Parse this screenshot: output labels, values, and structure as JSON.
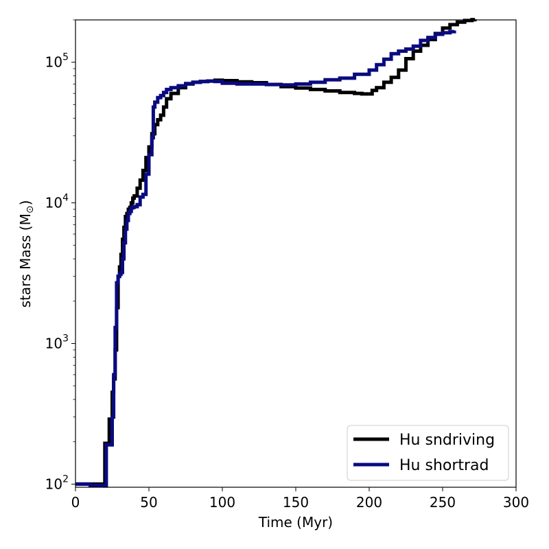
{
  "chart_data": {
    "type": "line",
    "xlabel": "Time (Myr)",
    "ylabel": "stars Mass (M",
    "ylabel_symbol": "⊙",
    "ylabel_close": ")",
    "xlim": [
      0,
      300
    ],
    "ylim": [
      95,
      200000
    ],
    "yscale": "log",
    "grid": false,
    "legend_position": "bottom-right",
    "x_ticks": [
      0,
      50,
      100,
      150,
      200,
      250,
      300
    ],
    "x_tick_labels": [
      "0",
      "50",
      "100",
      "150",
      "200",
      "250",
      "300"
    ],
    "y_ticks": [
      {
        "value": 100,
        "base": "10",
        "exp": "2"
      },
      {
        "value": 1000,
        "base": "10",
        "exp": "3"
      },
      {
        "value": 10000,
        "base": "10",
        "exp": "4"
      },
      {
        "value": 100000,
        "base": "10",
        "exp": "5"
      }
    ],
    "series": [
      {
        "name": "Hu sndriving",
        "color": "#000000",
        "x": [
          0,
          19.5,
          20,
          22,
          23,
          24,
          25,
          26,
          27,
          28,
          29,
          30,
          31,
          32,
          33,
          34,
          35,
          36,
          37,
          38,
          39,
          40,
          42,
          44,
          46,
          48,
          50,
          52,
          54,
          56,
          58,
          60,
          62,
          65,
          70,
          75,
          80,
          85,
          90,
          95,
          100,
          110,
          120,
          130,
          140,
          150,
          160,
          170,
          180,
          190,
          195,
          200,
          202,
          205,
          210,
          215,
          220,
          225,
          230,
          235,
          240,
          245,
          250,
          255,
          260,
          265,
          270,
          272
        ],
        "y": [
          100,
          98,
          195,
          195,
          290,
          290,
          450,
          560,
          900,
          1800,
          3000,
          3500,
          4300,
          5500,
          6700,
          8000,
          8400,
          9000,
          9300,
          10000,
          10800,
          11200,
          12700,
          14500,
          17000,
          21000,
          25000,
          31000,
          36000,
          39000,
          42000,
          48000,
          55000,
          60000,
          66000,
          70000,
          72000,
          73000,
          73500,
          74500,
          74000,
          72500,
          71500,
          69500,
          67000,
          65500,
          64000,
          62500,
          61000,
          60000,
          59500,
          59500,
          63000,
          66000,
          72000,
          78000,
          88000,
          106000,
          120000,
          132000,
          145000,
          160000,
          175000,
          185000,
          193000,
          198000,
          201000,
          202000
        ]
      },
      {
        "name": "Hu shortrad",
        "color": "#0a0a80",
        "x": [
          0,
          10,
          20,
          21,
          22,
          23,
          24,
          25,
          26,
          27,
          28,
          29,
          30,
          31,
          32,
          33,
          34,
          35,
          36,
          37,
          38,
          39,
          40,
          42,
          44,
          46,
          48,
          50,
          52,
          53,
          54,
          56,
          58,
          60,
          62,
          65,
          70,
          75,
          80,
          85,
          90,
          95,
          100,
          110,
          120,
          130,
          140,
          150,
          160,
          170,
          180,
          190,
          200,
          205,
          210,
          215,
          220,
          225,
          230,
          235,
          240,
          245,
          250,
          255,
          258
        ],
        "y": [
          100,
          98,
          97,
          190,
          190,
          190,
          190,
          300,
          600,
          1300,
          2700,
          3000,
          3100,
          3200,
          4000,
          5200,
          6500,
          7500,
          8400,
          8700,
          9200,
          9300,
          9400,
          9700,
          11000,
          11500,
          16000,
          22000,
          29000,
          48000,
          52000,
          56000,
          58000,
          61000,
          64000,
          66000,
          68000,
          70500,
          72000,
          73000,
          73500,
          73000,
          71000,
          70000,
          70000,
          69500,
          69000,
          70000,
          72000,
          75000,
          77000,
          82000,
          88000,
          96000,
          105000,
          115000,
          120000,
          124000,
          130000,
          143000,
          150000,
          158000,
          162000,
          165000,
          168000
        ]
      }
    ]
  }
}
